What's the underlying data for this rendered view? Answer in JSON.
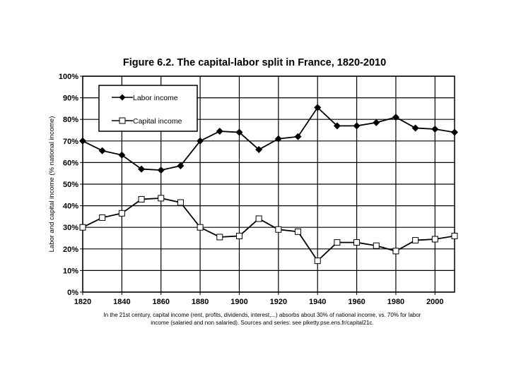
{
  "chart_data": {
    "type": "line",
    "title": "Figure 6.2. The capital-labor split in France, 1820-2010",
    "ylabel": "Labor and capital income (% national income)",
    "xlabel": "",
    "xlim": [
      1820,
      2010
    ],
    "ylim": [
      0,
      100
    ],
    "xticks": [
      1820,
      1840,
      1860,
      1880,
      1900,
      1920,
      1940,
      1960,
      1980,
      2000
    ],
    "yticks": [
      "0%",
      "10%",
      "20%",
      "30%",
      "40%",
      "50%",
      "60%",
      "70%",
      "80%",
      "90%",
      "100%"
    ],
    "grid": true,
    "legend_position": "top-left",
    "x": [
      1820,
      1830,
      1840,
      1850,
      1860,
      1870,
      1880,
      1890,
      1900,
      1910,
      1920,
      1930,
      1940,
      1950,
      1960,
      1970,
      1980,
      1990,
      2000,
      2010
    ],
    "series": [
      {
        "name": "Labor income",
        "marker": "filled-diamond",
        "color": "#000000",
        "values": [
          70,
          65.5,
          63.5,
          57,
          56.5,
          58.5,
          70,
          74.5,
          74,
          66,
          71,
          72,
          85.5,
          77,
          77,
          78.5,
          81,
          76,
          75.5,
          74
        ]
      },
      {
        "name": "Capital income",
        "marker": "open-square",
        "color": "#000000",
        "values": [
          30,
          34.5,
          36.5,
          43,
          43.5,
          41.5,
          30,
          25.5,
          26,
          34,
          29,
          28,
          14.5,
          23,
          23,
          21.5,
          19,
          24,
          24.5,
          26
        ]
      }
    ],
    "note_lines": [
      "In the 21st century, capital income (rent, profits, dividends, interest,...) absorbs about 30% of national income, vs. 70% for labor",
      "income (salaried and non salaried). Sources and series: see piketty.pse.ens.fr/capital21c."
    ]
  }
}
